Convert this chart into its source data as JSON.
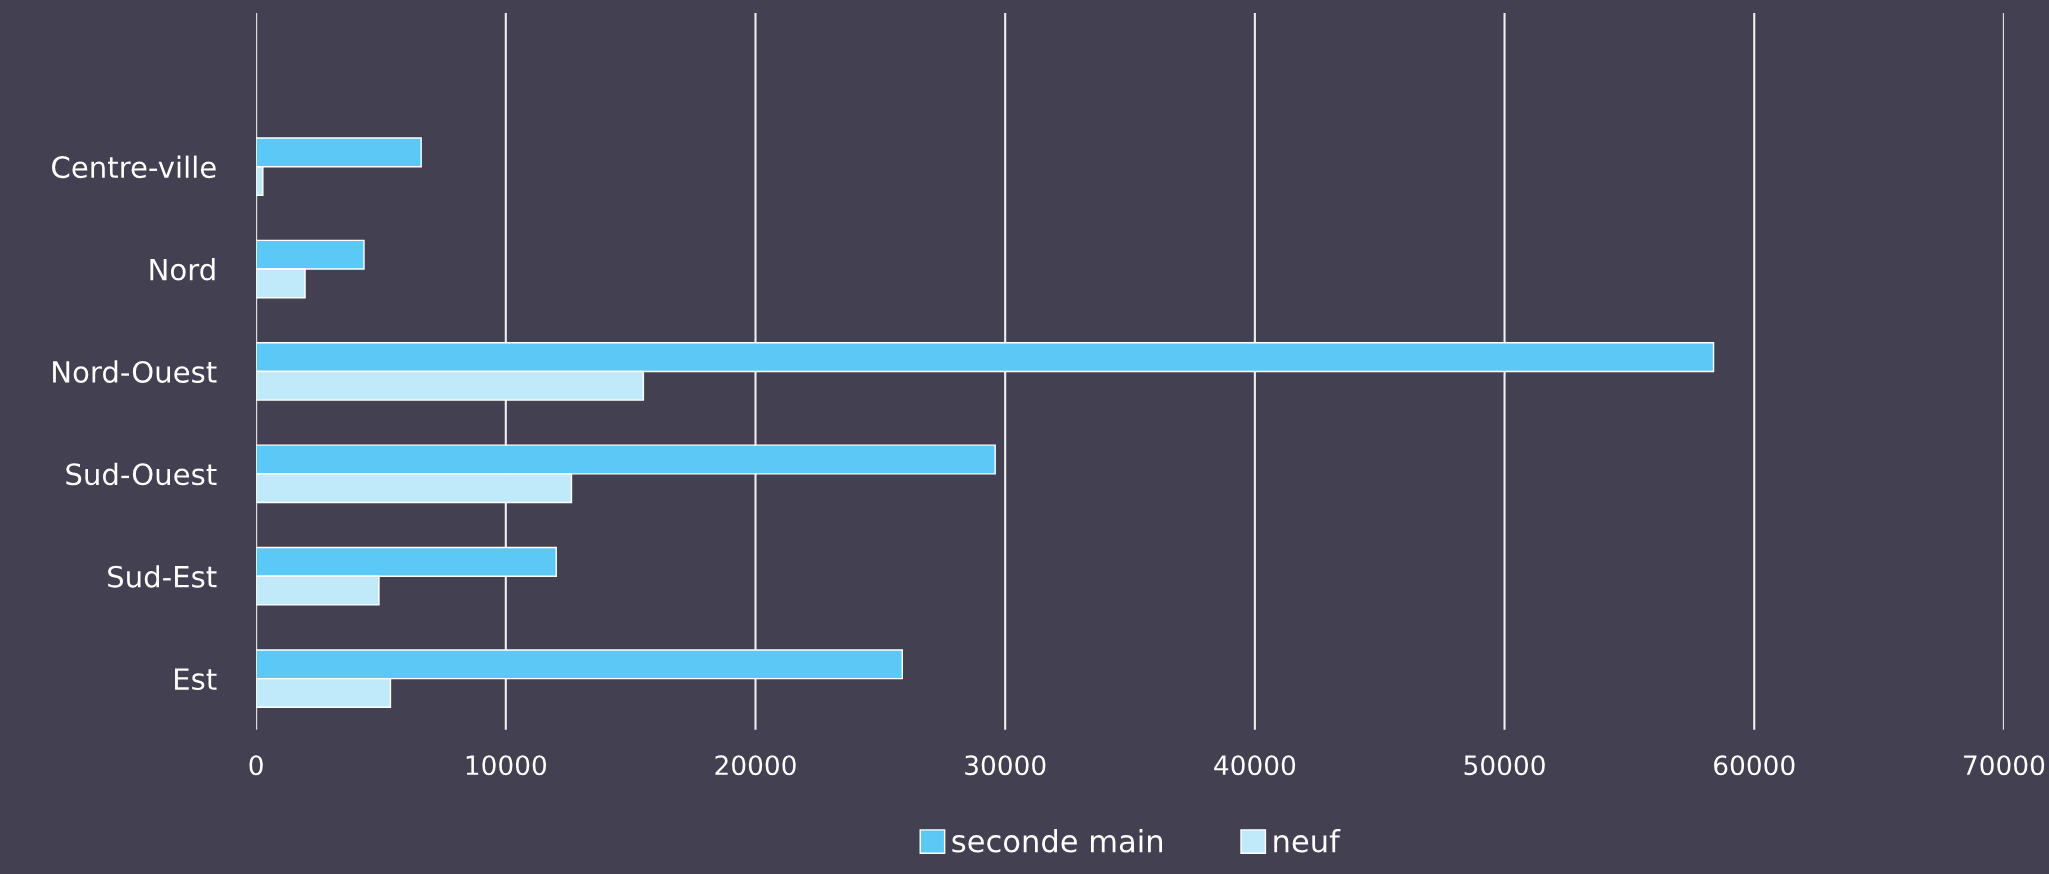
{
  "chart_data": {
    "type": "bar",
    "orientation": "horizontal",
    "categories": [
      "Centre-ville",
      "Nord",
      "Nord-Ouest",
      "Sud-Ouest",
      "Sud-Est",
      "Est"
    ],
    "series": [
      {
        "name": "seconde main",
        "color": "#5bc8f5",
        "values": [
          6610,
          4320,
          58370,
          29600,
          12020,
          25880
        ]
      },
      {
        "name": "neuf",
        "color": "#c0e9fa",
        "values": [
          270,
          1960,
          15510,
          12630,
          4920,
          5380
        ]
      }
    ],
    "xlim": [
      0,
      70000
    ],
    "xticks": [
      0,
      10000,
      20000,
      30000,
      40000,
      50000,
      60000,
      70000
    ],
    "grid": "x",
    "legend": "bottom"
  }
}
